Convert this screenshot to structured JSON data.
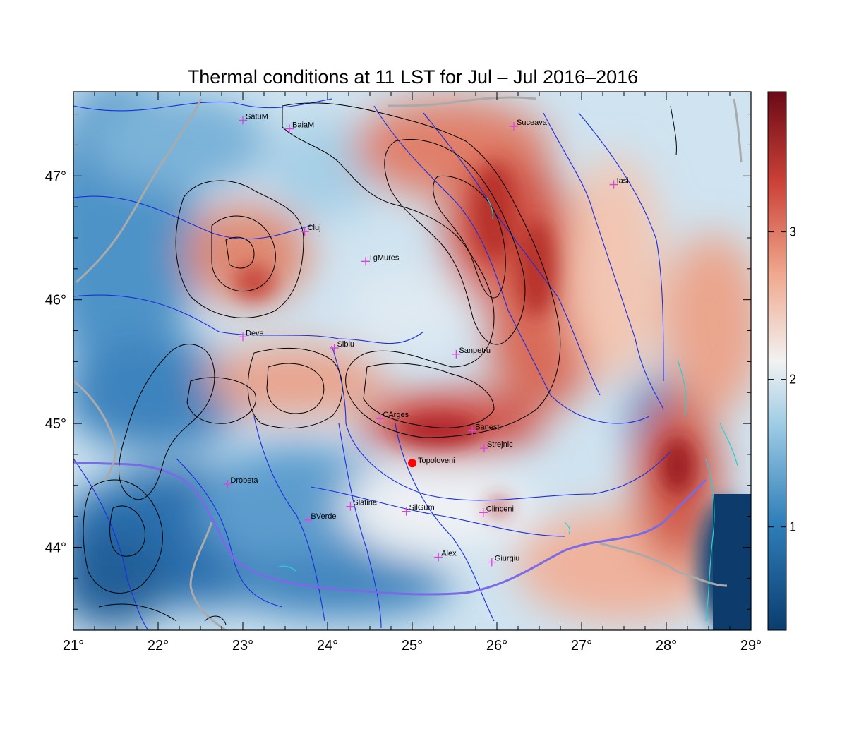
{
  "title": "Thermal conditions at 11 LST for Jul – Jul  2016–2016",
  "map": {
    "lon_ticks": [
      "21°",
      "22°",
      "23°",
      "24°",
      "25°",
      "26°",
      "27°",
      "28°",
      "29°"
    ],
    "lat_ticks": [
      "44°",
      "45°",
      "46°",
      "47°"
    ],
    "lon_range": [
      21,
      29
    ],
    "lat_range": [
      43.33,
      47.68
    ]
  },
  "colorbar": {
    "ticks": [
      "1",
      "2",
      "3"
    ],
    "range": [
      0.3,
      3.95
    ],
    "colors": [
      "#0b3d6e",
      "#2f7fb9",
      "#9dcbe4",
      "#f2f2f2",
      "#f0a98f",
      "#cc4238",
      "#6b0a16"
    ]
  },
  "stations": [
    {
      "name": "SatuM",
      "lon": 23.0,
      "lat": 47.45
    },
    {
      "name": "BaiaM",
      "lon": 23.55,
      "lat": 47.38
    },
    {
      "name": "Suceava",
      "lon": 26.2,
      "lat": 47.4
    },
    {
      "name": "Iasi",
      "lon": 27.38,
      "lat": 46.93
    },
    {
      "name": "Cluj",
      "lon": 23.73,
      "lat": 46.55
    },
    {
      "name": "TgMures",
      "lon": 24.45,
      "lat": 46.31
    },
    {
      "name": "Deva",
      "lon": 23.0,
      "lat": 45.7
    },
    {
      "name": "Sibiu",
      "lon": 24.08,
      "lat": 45.61
    },
    {
      "name": "Sanpetru",
      "lon": 25.52,
      "lat": 45.56
    },
    {
      "name": "CArges",
      "lon": 24.62,
      "lat": 45.04
    },
    {
      "name": "Banesti",
      "lon": 25.71,
      "lat": 44.94
    },
    {
      "name": "Strejnic",
      "lon": 25.85,
      "lat": 44.8
    },
    {
      "name": "Drobeta",
      "lon": 22.82,
      "lat": 44.51
    },
    {
      "name": "Slatina",
      "lon": 24.27,
      "lat": 44.33
    },
    {
      "name": "SilGum",
      "lon": 24.93,
      "lat": 44.29
    },
    {
      "name": "Clinceni",
      "lon": 25.84,
      "lat": 44.28
    },
    {
      "name": "BVerde",
      "lon": 23.77,
      "lat": 44.22
    },
    {
      "name": "Alex",
      "lon": 25.31,
      "lat": 43.92
    },
    {
      "name": "Giurgiu",
      "lon": 25.94,
      "lat": 43.88
    }
  ],
  "highlight": {
    "name": "Topoloveni",
    "lon": 25.0,
    "lat": 44.68,
    "color": "#ff0000"
  },
  "marker_color": "#e040e0"
}
